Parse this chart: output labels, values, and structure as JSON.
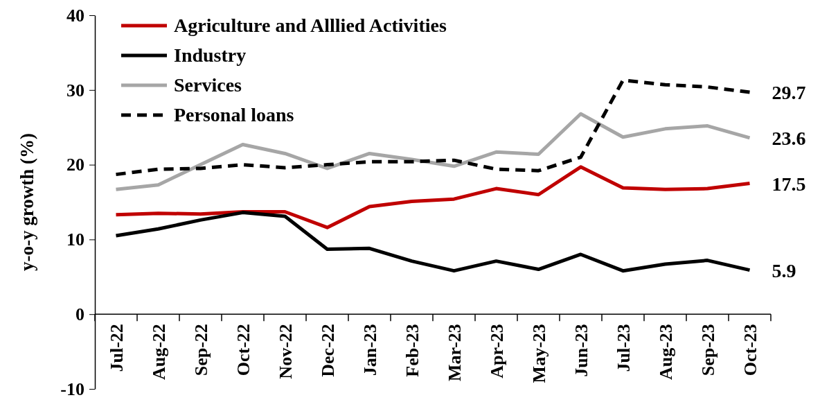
{
  "chart_data": {
    "type": "line",
    "ylabel": "y-o-y growth (%)",
    "categories": [
      "Jul-22",
      "Aug-22",
      "Sep-22",
      "Oct-22",
      "Nov-22",
      "Dec-22",
      "Jan-23",
      "Feb-23",
      "Mar-23",
      "Apr-23",
      "May-23",
      "Jun-23",
      "Jul-23",
      "Aug-23",
      "Sep-23",
      "Oct-23"
    ],
    "ylim": [
      -10,
      40
    ],
    "yticks": [
      -10,
      0,
      10,
      20,
      30,
      40
    ],
    "grid": false,
    "legend": "top left",
    "marker": "none",
    "series": [
      {
        "name": "Agriculture and Alllied Activities",
        "color": "#c00000",
        "values": [
          13.3,
          13.5,
          13.4,
          13.7,
          13.7,
          11.6,
          14.4,
          15.1,
          15.4,
          16.8,
          16.0,
          19.7,
          16.9,
          16.7,
          16.8,
          17.5
        ],
        "value_labels": [
          null,
          null,
          null,
          null,
          null,
          null,
          null,
          null,
          null,
          null,
          null,
          null,
          null,
          null,
          null,
          "17.5"
        ]
      },
      {
        "name": "Industry",
        "color": "#000000",
        "values": [
          10.5,
          11.4,
          12.6,
          13.6,
          13.1,
          8.7,
          8.8,
          7.1,
          5.8,
          7.1,
          6.0,
          8.0,
          5.8,
          6.7,
          7.2,
          5.9
        ],
        "value_labels": [
          null,
          null,
          null,
          null,
          null,
          null,
          null,
          null,
          null,
          null,
          null,
          null,
          null,
          null,
          null,
          "5.9"
        ]
      },
      {
        "name": "Services",
        "color": "#a6a6a6",
        "values": [
          16.7,
          17.3,
          20.0,
          22.7,
          21.5,
          19.5,
          21.5,
          20.7,
          19.8,
          21.7,
          21.4,
          26.8,
          23.7,
          24.8,
          25.2,
          23.6
        ],
        "value_labels": [
          null,
          null,
          null,
          null,
          null,
          null,
          null,
          null,
          null,
          null,
          null,
          null,
          null,
          null,
          null,
          "23.6"
        ]
      },
      {
        "name": "Personal loans",
        "color": "#000000",
        "line_style": "dashed",
        "values": [
          18.7,
          19.4,
          19.5,
          20.0,
          19.6,
          20.0,
          20.4,
          20.4,
          20.6,
          19.4,
          19.2,
          21.0,
          31.3,
          30.7,
          30.4,
          29.7
        ],
        "value_labels": [
          null,
          null,
          null,
          null,
          null,
          null,
          null,
          null,
          null,
          null,
          null,
          null,
          null,
          null,
          null,
          "29.7"
        ]
      }
    ]
  }
}
